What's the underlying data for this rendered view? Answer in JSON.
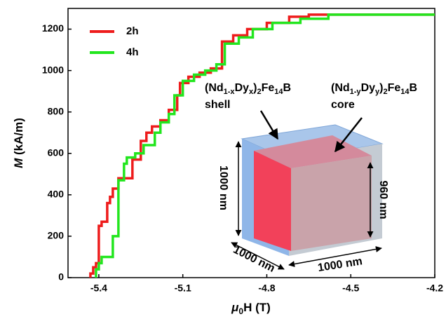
{
  "chart_data": {
    "type": "step-line",
    "xlabel": [
      "μ",
      "0",
      "H (T)"
    ],
    "ylabel": [
      "M",
      " (kA/m)"
    ],
    "xlim": [
      -5.51,
      -4.2
    ],
    "xticks": [
      -5.4,
      -5.1,
      -4.8,
      -4.5,
      -4.2
    ],
    "ylim": [
      0,
      1300
    ],
    "yticks": [
      0,
      200,
      400,
      600,
      800,
      1000,
      1200
    ],
    "grid": false,
    "legend": "upper-left",
    "series": [
      {
        "name": "2h",
        "color": "#ee1c1c",
        "x": [
          -5.43,
          -5.43,
          -5.42,
          -5.42,
          -5.41,
          -5.41,
          -5.4,
          -5.4,
          -5.39,
          -5.39,
          -5.37,
          -5.37,
          -5.36,
          -5.36,
          -5.35,
          -5.35,
          -5.33,
          -5.33,
          -5.28,
          -5.28,
          -5.25,
          -5.25,
          -5.23,
          -5.23,
          -5.21,
          -5.21,
          -5.18,
          -5.18,
          -5.15,
          -5.15,
          -5.12,
          -5.12,
          -5.11,
          -5.11,
          -5.08,
          -5.08,
          -5.04,
          -5.04,
          -5.0,
          -5.0,
          -4.96,
          -4.96,
          -4.92,
          -4.92,
          -4.87,
          -4.87,
          -4.8,
          -4.8,
          -4.72,
          -4.72,
          -4.65,
          -4.65,
          -4.2
        ],
        "values": [
          0,
          20,
          20,
          50,
          50,
          70,
          70,
          250,
          250,
          270,
          270,
          360,
          360,
          390,
          390,
          430,
          430,
          480,
          480,
          570,
          570,
          660,
          660,
          700,
          700,
          730,
          730,
          760,
          760,
          810,
          810,
          880,
          880,
          940,
          940,
          970,
          970,
          990,
          990,
          1010,
          1010,
          1140,
          1140,
          1170,
          1170,
          1200,
          1200,
          1230,
          1230,
          1260,
          1260,
          1270,
          1270
        ]
      },
      {
        "name": "4h",
        "color": "#22e61e",
        "x": [
          -5.41,
          -5.41,
          -5.4,
          -5.4,
          -5.39,
          -5.39,
          -5.35,
          -5.35,
          -5.33,
          -5.33,
          -5.31,
          -5.31,
          -5.3,
          -5.3,
          -5.27,
          -5.27,
          -5.24,
          -5.24,
          -5.2,
          -5.2,
          -5.18,
          -5.18,
          -5.15,
          -5.15,
          -5.13,
          -5.13,
          -5.1,
          -5.1,
          -5.06,
          -5.06,
          -5.02,
          -5.02,
          -4.98,
          -4.98,
          -4.95,
          -4.95,
          -4.9,
          -4.9,
          -4.85,
          -4.85,
          -4.78,
          -4.78,
          -4.68,
          -4.68,
          -4.58,
          -4.58,
          -4.2
        ],
        "values": [
          0,
          40,
          40,
          70,
          70,
          100,
          100,
          200,
          200,
          470,
          470,
          550,
          550,
          580,
          580,
          600,
          600,
          640,
          640,
          700,
          700,
          750,
          750,
          790,
          790,
          880,
          880,
          950,
          950,
          980,
          980,
          1000,
          1000,
          1030,
          1030,
          1130,
          1130,
          1160,
          1160,
          1200,
          1200,
          1230,
          1230,
          1250,
          1250,
          1270,
          1270
        ]
      }
    ],
    "annotations": {
      "shell_formula": [
        "(Nd",
        "1-x",
        "Dy",
        "x",
        ")",
        "2",
        "Fe",
        "14",
        "B"
      ],
      "shell": "shell",
      "core_formula": [
        "(Nd",
        "1-y",
        "Dy",
        "y",
        ")",
        "2",
        "Fe",
        "14",
        "B"
      ],
      "core": "core",
      "height_outer": "1000 nm",
      "height_inner": "960 nm",
      "depth": "1000 nm",
      "width": "1000 nm"
    }
  }
}
